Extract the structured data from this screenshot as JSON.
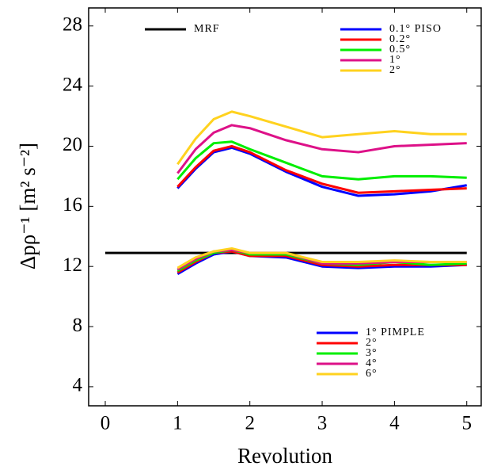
{
  "chart_data": {
    "type": "line",
    "xlabel": "Revolution",
    "ylabel": "Δpρ⁻¹ [m² s⁻²]",
    "xlim": [
      -0.23,
      5.2
    ],
    "ylim": [
      2.73,
      29.2
    ],
    "xticks": [
      0,
      1,
      2,
      3,
      4,
      5
    ],
    "yticks": [
      4,
      8,
      12,
      16,
      20,
      24,
      28
    ],
    "grid": false,
    "series": [
      {
        "name": "MRF",
        "color": "#000000",
        "legend": "upper left",
        "x": [
          0,
          5
        ],
        "values": [
          12.9,
          12.9
        ]
      },
      {
        "name": "0.1° PISO",
        "color": "#0000ff",
        "legend": "upper right",
        "x": [
          1,
          1.25,
          1.5,
          1.75,
          2,
          2.5,
          3,
          3.5,
          4,
          4.5,
          5
        ],
        "values": [
          17.2,
          18.5,
          19.6,
          19.9,
          19.5,
          18.3,
          17.3,
          16.7,
          16.8,
          17.0,
          17.4
        ]
      },
      {
        "name": "0.2°",
        "color": "#ff0000",
        "legend": "upper right",
        "x": [
          1,
          1.25,
          1.5,
          1.75,
          2,
          2.5,
          3,
          3.5,
          4,
          4.5,
          5
        ],
        "values": [
          17.3,
          18.6,
          19.7,
          20.0,
          19.6,
          18.4,
          17.5,
          16.9,
          17.0,
          17.1,
          17.2
        ]
      },
      {
        "name": "0.5°",
        "color": "#00ee00",
        "legend": "upper right",
        "x": [
          1,
          1.25,
          1.5,
          1.75,
          2,
          2.5,
          3,
          3.5,
          4,
          4.5,
          5
        ],
        "values": [
          17.8,
          19.2,
          20.2,
          20.3,
          19.8,
          18.9,
          18.0,
          17.8,
          18.0,
          18.0,
          17.9
        ]
      },
      {
        "name": "1°",
        "color": "#dd1188",
        "legend": "upper right",
        "x": [
          1,
          1.25,
          1.5,
          1.75,
          2,
          2.5,
          3,
          3.5,
          4,
          4.5,
          5
        ],
        "values": [
          18.2,
          19.8,
          20.9,
          21.4,
          21.2,
          20.4,
          19.8,
          19.6,
          20.0,
          20.1,
          20.2
        ]
      },
      {
        "name": "2°",
        "color": "#ffd21f",
        "legend": "upper right",
        "x": [
          1,
          1.25,
          1.5,
          1.75,
          2,
          2.5,
          3,
          3.5,
          4,
          4.5,
          5
        ],
        "values": [
          18.8,
          20.5,
          21.8,
          22.3,
          22.0,
          21.3,
          20.6,
          20.8,
          21.0,
          20.8,
          20.8
        ]
      },
      {
        "name": "1° PIMPLE",
        "color": "#0000ff",
        "legend": "lower right",
        "x": [
          1,
          1.25,
          1.5,
          1.75,
          2,
          2.5,
          3,
          3.5,
          4,
          4.5,
          5
        ],
        "values": [
          11.5,
          12.2,
          12.8,
          13.0,
          12.7,
          12.6,
          12.0,
          11.9,
          12.0,
          12.0,
          12.1
        ]
      },
      {
        "name": "2°",
        "color": "#ff0000",
        "legend": "lower right",
        "x": [
          1,
          1.25,
          1.5,
          1.75,
          2,
          2.5,
          3,
          3.5,
          4,
          4.5,
          5
        ],
        "values": [
          11.6,
          12.3,
          12.9,
          13.0,
          12.7,
          12.7,
          12.1,
          12.0,
          12.1,
          12.1,
          12.1
        ]
      },
      {
        "name": "3°",
        "color": "#00ee00",
        "legend": "lower right",
        "x": [
          1,
          1.25,
          1.5,
          1.75,
          2,
          2.5,
          3,
          3.5,
          4,
          4.5,
          5
        ],
        "values": [
          11.7,
          12.4,
          12.9,
          13.1,
          12.8,
          12.8,
          12.2,
          12.1,
          12.3,
          12.1,
          12.2
        ]
      },
      {
        "name": "4°",
        "color": "#dd1188",
        "legend": "lower right",
        "x": [
          1,
          1.25,
          1.5,
          1.75,
          2,
          2.5,
          3,
          3.5,
          4,
          4.5,
          5
        ],
        "values": [
          11.8,
          12.5,
          13.0,
          13.1,
          12.9,
          12.9,
          12.2,
          12.2,
          12.3,
          12.3,
          12.3
        ]
      },
      {
        "name": "6°",
        "color": "#ffd21f",
        "legend": "lower right",
        "x": [
          1,
          1.25,
          1.5,
          1.75,
          2,
          2.5,
          3,
          3.5,
          4,
          4.5,
          5
        ],
        "values": [
          11.9,
          12.6,
          13.0,
          13.2,
          12.9,
          12.9,
          12.3,
          12.3,
          12.4,
          12.3,
          12.3
        ]
      }
    ]
  }
}
